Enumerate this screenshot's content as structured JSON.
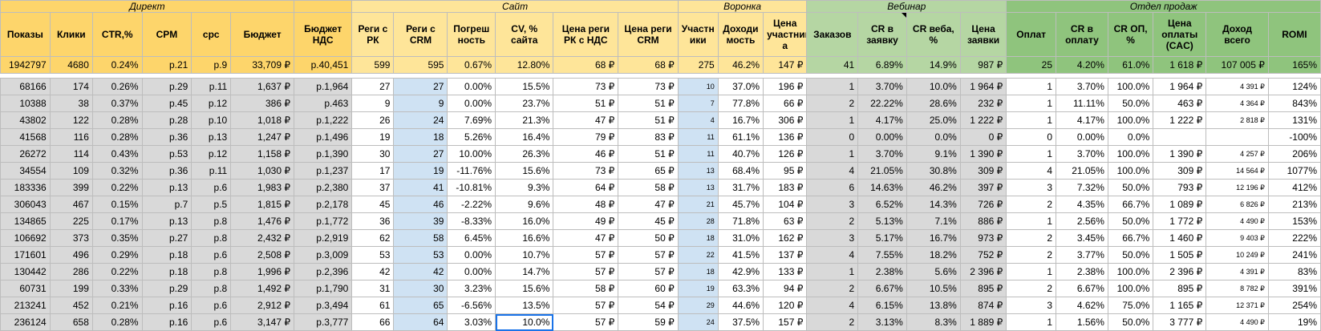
{
  "groups": [
    {
      "label": "Директ",
      "span": 6,
      "cls": "y"
    },
    {
      "label": "",
      "span": 1,
      "cls": "y"
    },
    {
      "label": "Сайт",
      "span": 6,
      "cls": "yl"
    },
    {
      "label": "Воронка",
      "span": 3,
      "cls": "yl"
    },
    {
      "label": "Вебинар",
      "span": 4,
      "cls": "gr"
    },
    {
      "label": "Отдел продаж",
      "span": 6,
      "cls": "gd"
    }
  ],
  "headers": [
    "Показы",
    "Клики",
    "CTR,%",
    "CPM",
    "cpc",
    "Бюджет",
    "Бюджет НДС",
    "Реги с РК",
    "Реги с CRM",
    "Погреш ность",
    "CV, % сайта",
    "Цена реги РК с НДС",
    "Цена реги CRM",
    "Участн ики",
    "Доходи мость",
    "Цена участник а",
    "Заказов",
    "CR в заявку",
    "CR веба, %",
    "Цена заявки",
    "Оплат",
    "CR в оплату",
    "CR ОП, %",
    "Цена оплаты (CAC)",
    "Доход всего",
    "ROMI"
  ],
  "totals": [
    "1942797",
    "4680",
    "0.24%",
    "р.21",
    "р.9",
    "33,709 ₽",
    "р.40,451",
    "599",
    "595",
    "0.67%",
    "12.80%",
    "68 ₽",
    "68 ₽",
    "275",
    "46.2%",
    "147 ₽",
    "41",
    "6.89%",
    "14.9%",
    "987 ₽",
    "25",
    "4.20%",
    "61.0%",
    "1 618 ₽",
    "107 005 ₽",
    "165%"
  ],
  "rows": [
    [
      "68166",
      "174",
      "0.26%",
      "р.29",
      "р.11",
      "1,637 ₽",
      "р.1,964",
      "27",
      "27",
      "0.00%",
      "15.5%",
      "73 ₽",
      "73 ₽",
      "10",
      "37.0%",
      "196 ₽",
      "1",
      "3.70%",
      "10.0%",
      "1 964 ₽",
      "1",
      "3.70%",
      "100.0%",
      "1 964 ₽",
      "4 391 ₽",
      "124%"
    ],
    [
      "10388",
      "38",
      "0.37%",
      "р.45",
      "р.12",
      "386 ₽",
      "р.463",
      "9",
      "9",
      "0.00%",
      "23.7%",
      "51 ₽",
      "51 ₽",
      "7",
      "77.8%",
      "66 ₽",
      "2",
      "22.22%",
      "28.6%",
      "232 ₽",
      "1",
      "11.11%",
      "50.0%",
      "463 ₽",
      "4 364 ₽",
      "843%"
    ],
    [
      "43802",
      "122",
      "0.28%",
      "р.28",
      "р.10",
      "1,018 ₽",
      "р.1,222",
      "26",
      "24",
      "7.69%",
      "21.3%",
      "47 ₽",
      "51 ₽",
      "4",
      "16.7%",
      "306 ₽",
      "1",
      "4.17%",
      "25.0%",
      "1 222 ₽",
      "1",
      "4.17%",
      "100.0%",
      "1 222 ₽",
      "2 818 ₽",
      "131%"
    ],
    [
      "41568",
      "116",
      "0.28%",
      "р.36",
      "р.13",
      "1,247 ₽",
      "р.1,496",
      "19",
      "18",
      "5.26%",
      "16.4%",
      "79 ₽",
      "83 ₽",
      "11",
      "61.1%",
      "136 ₽",
      "0",
      "0.00%",
      "0.0%",
      "0 ₽",
      "0",
      "0.00%",
      "0.0%",
      "",
      "",
      "-100%"
    ],
    [
      "26272",
      "114",
      "0.43%",
      "р.53",
      "р.12",
      "1,158 ₽",
      "р.1,390",
      "30",
      "27",
      "10.00%",
      "26.3%",
      "46 ₽",
      "51 ₽",
      "11",
      "40.7%",
      "126 ₽",
      "1",
      "3.70%",
      "9.1%",
      "1 390 ₽",
      "1",
      "3.70%",
      "100.0%",
      "1 390 ₽",
      "4 257 ₽",
      "206%"
    ],
    [
      "34554",
      "109",
      "0.32%",
      "р.36",
      "р.11",
      "1,030 ₽",
      "р.1,237",
      "17",
      "19",
      "-11.76%",
      "15.6%",
      "73 ₽",
      "65 ₽",
      "13",
      "68.4%",
      "95 ₽",
      "4",
      "21.05%",
      "30.8%",
      "309 ₽",
      "4",
      "21.05%",
      "100.0%",
      "309 ₽",
      "14 564 ₽",
      "1077%"
    ],
    [
      "183336",
      "399",
      "0.22%",
      "р.13",
      "р.6",
      "1,983 ₽",
      "р.2,380",
      "37",
      "41",
      "-10.81%",
      "9.3%",
      "64 ₽",
      "58 ₽",
      "13",
      "31.7%",
      "183 ₽",
      "6",
      "14.63%",
      "46.2%",
      "397 ₽",
      "3",
      "7.32%",
      "50.0%",
      "793 ₽",
      "12 196 ₽",
      "412%"
    ],
    [
      "306043",
      "467",
      "0.15%",
      "р.7",
      "р.5",
      "1,815 ₽",
      "р.2,178",
      "45",
      "46",
      "-2.22%",
      "9.6%",
      "48 ₽",
      "47 ₽",
      "21",
      "45.7%",
      "104 ₽",
      "3",
      "6.52%",
      "14.3%",
      "726 ₽",
      "2",
      "4.35%",
      "66.7%",
      "1 089 ₽",
      "6 826 ₽",
      "213%"
    ],
    [
      "134865",
      "225",
      "0.17%",
      "р.13",
      "р.8",
      "1,476 ₽",
      "р.1,772",
      "36",
      "39",
      "-8.33%",
      "16.0%",
      "49 ₽",
      "45 ₽",
      "28",
      "71.8%",
      "63 ₽",
      "2",
      "5.13%",
      "7.1%",
      "886 ₽",
      "1",
      "2.56%",
      "50.0%",
      "1 772 ₽",
      "4 490 ₽",
      "153%"
    ],
    [
      "106692",
      "373",
      "0.35%",
      "р.27",
      "р.8",
      "2,432 ₽",
      "р.2,919",
      "62",
      "58",
      "6.45%",
      "16.6%",
      "47 ₽",
      "50 ₽",
      "18",
      "31.0%",
      "162 ₽",
      "3",
      "5.17%",
      "16.7%",
      "973 ₽",
      "2",
      "3.45%",
      "66.7%",
      "1 460 ₽",
      "9 403 ₽",
      "222%"
    ],
    [
      "171601",
      "496",
      "0.29%",
      "р.18",
      "р.6",
      "2,508 ₽",
      "р.3,009",
      "53",
      "53",
      "0.00%",
      "10.7%",
      "57 ₽",
      "57 ₽",
      "22",
      "41.5%",
      "137 ₽",
      "4",
      "7.55%",
      "18.2%",
      "752 ₽",
      "2",
      "3.77%",
      "50.0%",
      "1 505 ₽",
      "10 249 ₽",
      "241%"
    ],
    [
      "130442",
      "286",
      "0.22%",
      "р.18",
      "р.8",
      "1,996 ₽",
      "р.2,396",
      "42",
      "42",
      "0.00%",
      "14.7%",
      "57 ₽",
      "57 ₽",
      "18",
      "42.9%",
      "133 ₽",
      "1",
      "2.38%",
      "5.6%",
      "2 396 ₽",
      "1",
      "2.38%",
      "100.0%",
      "2 396 ₽",
      "4 391 ₽",
      "83%"
    ],
    [
      "60731",
      "199",
      "0.33%",
      "р.29",
      "р.8",
      "1,492 ₽",
      "р.1,790",
      "31",
      "30",
      "3.23%",
      "15.6%",
      "58 ₽",
      "60 ₽",
      "19",
      "63.3%",
      "94 ₽",
      "2",
      "6.67%",
      "10.5%",
      "895 ₽",
      "2",
      "6.67%",
      "100.0%",
      "895 ₽",
      "8 782 ₽",
      "391%"
    ],
    [
      "213241",
      "452",
      "0.21%",
      "р.16",
      "р.6",
      "2,912 ₽",
      "р.3,494",
      "61",
      "65",
      "-6.56%",
      "13.5%",
      "57 ₽",
      "54 ₽",
      "29",
      "44.6%",
      "120 ₽",
      "4",
      "6.15%",
      "13.8%",
      "874 ₽",
      "3",
      "4.62%",
      "75.0%",
      "1 165 ₽",
      "12 371 ₽",
      "254%"
    ],
    [
      "236124",
      "658",
      "0.28%",
      "р.16",
      "р.6",
      "3,147 ₽",
      "р.3,777",
      "66",
      "64",
      "3.03%",
      "10.0%",
      "57 ₽",
      "59 ₽",
      "24",
      "37.5%",
      "157 ₽",
      "2",
      "3.13%",
      "8.3%",
      "1 889 ₽",
      "1",
      "1.56%",
      "50.0%",
      "3 777 ₽",
      "4 490 ₽",
      "19%"
    ]
  ],
  "selected_cell": {
    "row": 14,
    "col": 10
  }
}
